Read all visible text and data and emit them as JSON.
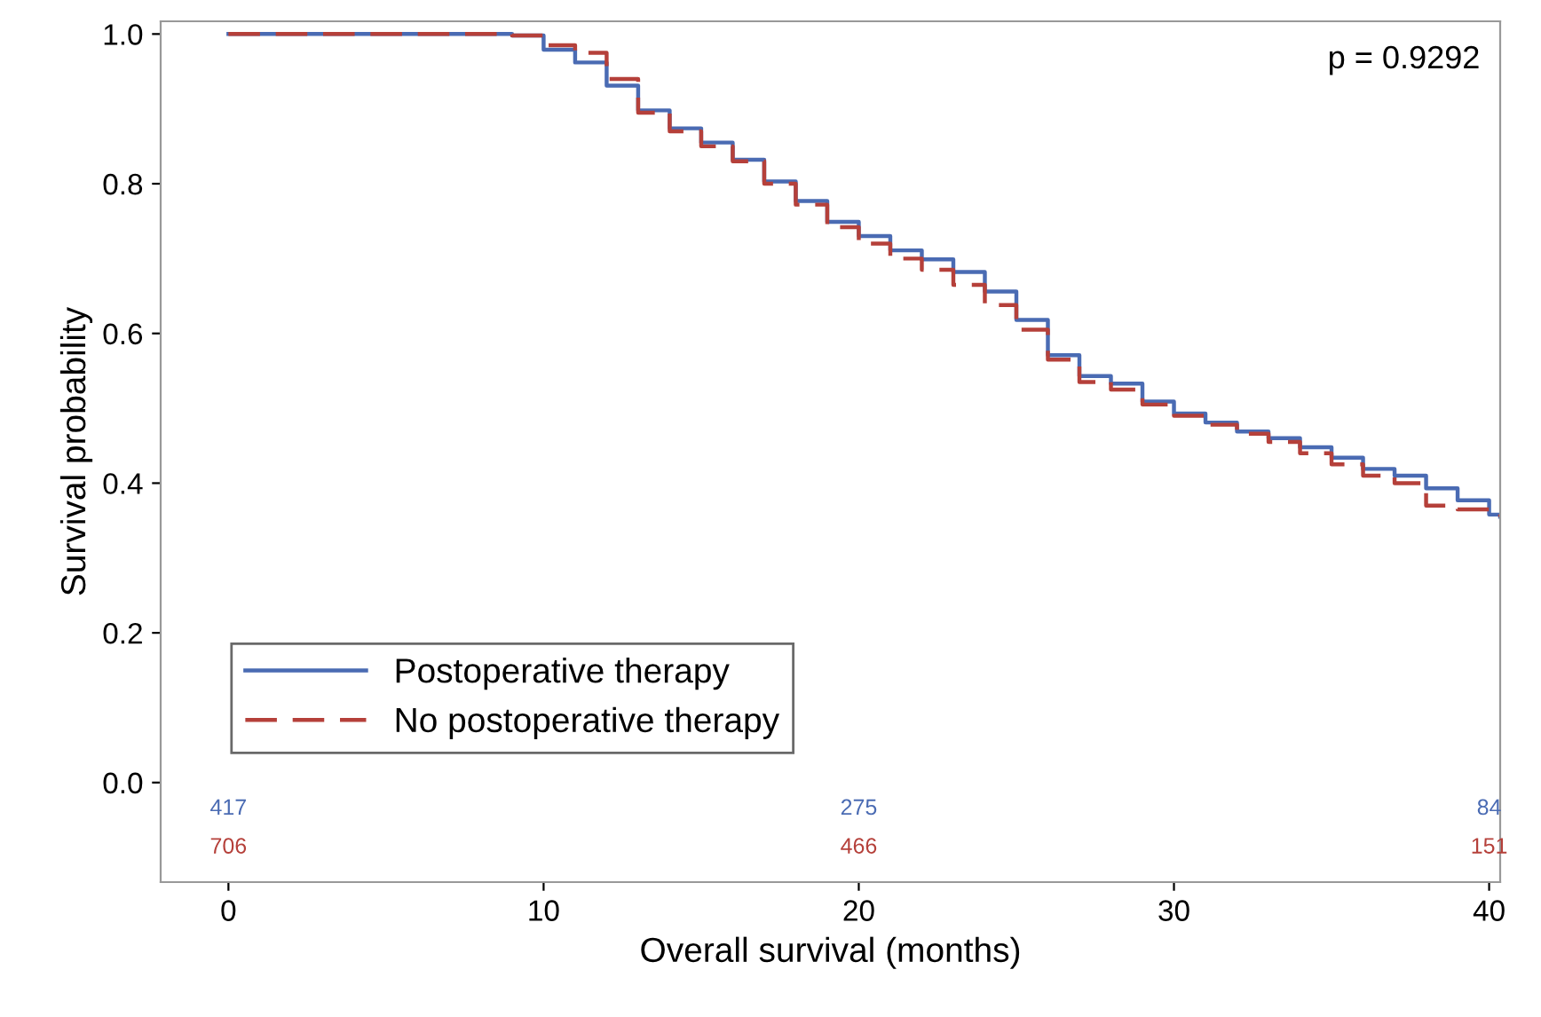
{
  "chart_data": {
    "type": "step",
    "xlabel": "Overall survival (months)",
    "ylabel": "Survival probability",
    "xlim": [
      -2.15,
      40.35
    ],
    "ylim": [
      -0.133,
      1.017
    ],
    "xticks": [
      0,
      10,
      20,
      30,
      40
    ],
    "yticks": [
      {
        "value": 0,
        "label": "0.0"
      },
      0.2,
      0.4,
      0.6,
      0.8,
      {
        "value": 1,
        "label": "1.0"
      }
    ],
    "grid": false,
    "legend": "bottom left",
    "series": [
      {
        "name": "Postoperative therapy",
        "color": "#4a6bb3",
        "line_style": "solid",
        "x": [
          0,
          8.7,
          9,
          10,
          11,
          12,
          13,
          14,
          15,
          16,
          17,
          18,
          19,
          20,
          21,
          22,
          23,
          24,
          25,
          26,
          27,
          28,
          29,
          30,
          31,
          32,
          33,
          34,
          35,
          36,
          37,
          38,
          39,
          40,
          40.35
        ],
        "values": [
          1.0,
          1.0,
          0.998,
          0.979,
          0.962,
          0.931,
          0.898,
          0.874,
          0.855,
          0.832,
          0.803,
          0.777,
          0.749,
          0.73,
          0.711,
          0.699,
          0.682,
          0.656,
          0.618,
          0.571,
          0.543,
          0.533,
          0.509,
          0.493,
          0.481,
          0.469,
          0.46,
          0.448,
          0.434,
          0.419,
          0.41,
          0.393,
          0.377,
          0.358,
          0.355
        ]
      },
      {
        "name": "No postoperative therapy",
        "color": "#b5403a",
        "line_style": "dashed",
        "x": [
          0,
          9,
          10,
          11,
          12,
          13,
          14,
          15,
          16,
          17,
          18,
          19,
          20,
          21,
          22,
          23,
          24,
          25,
          26,
          27,
          28,
          29,
          30,
          31,
          32,
          33,
          34,
          35,
          36,
          37,
          38,
          39,
          40,
          40.35
        ],
        "values": [
          1.0,
          0.998,
          0.985,
          0.975,
          0.94,
          0.895,
          0.87,
          0.85,
          0.83,
          0.8,
          0.772,
          0.742,
          0.72,
          0.7,
          0.685,
          0.665,
          0.638,
          0.605,
          0.565,
          0.535,
          0.525,
          0.505,
          0.49,
          0.478,
          0.466,
          0.455,
          0.44,
          0.425,
          0.41,
          0.4,
          0.37,
          0.365,
          0.358,
          0.355
        ]
      }
    ],
    "annotations": [
      "p = 0.9292",
      "417",
      "275",
      "84",
      "706",
      "466",
      "151"
    ]
  }
}
